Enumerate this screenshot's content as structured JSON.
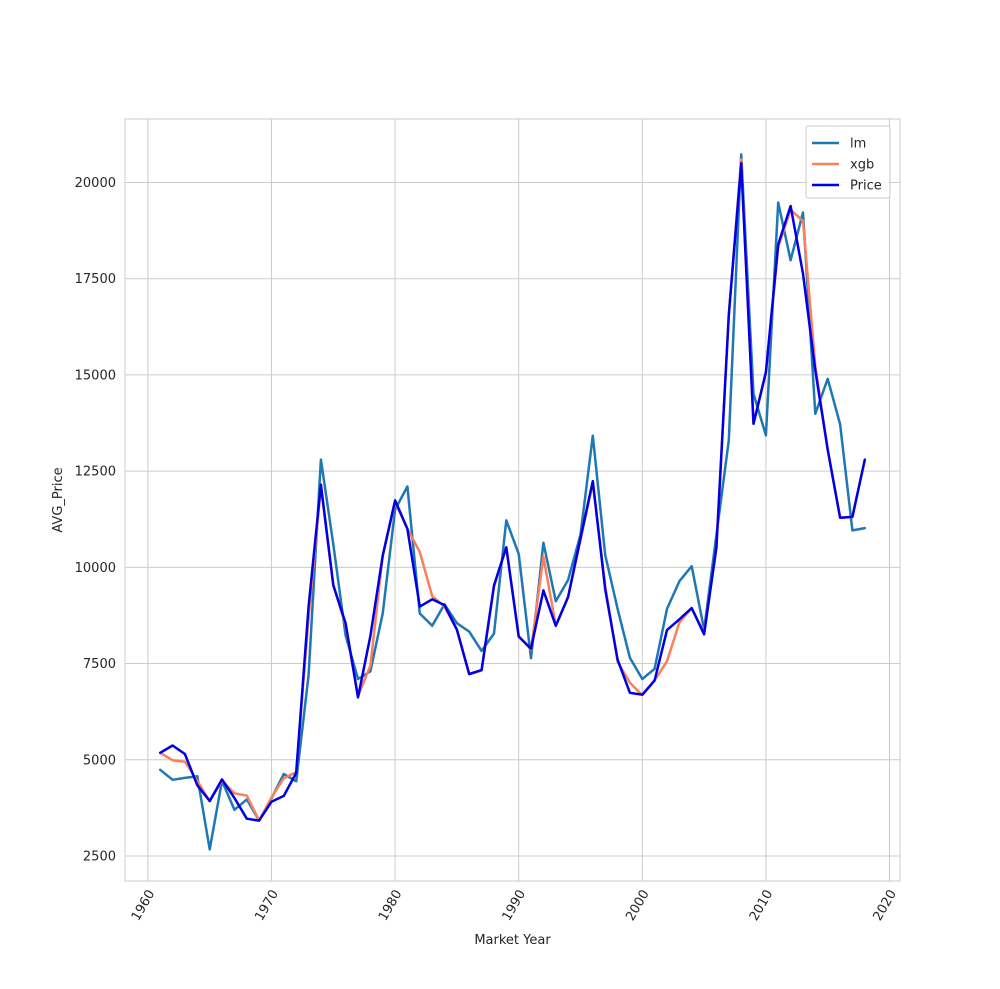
{
  "chart_data": {
    "type": "line",
    "title": "",
    "xlabel": "Market Year",
    "ylabel": "AVG_Price",
    "xlim": [
      1958.15,
      2020.85
    ],
    "ylim": [
      1850,
      21650
    ],
    "xticks": [
      1960,
      1970,
      1980,
      1990,
      2000,
      2010,
      2020
    ],
    "xtick_labels": [
      "1960",
      "1970",
      "1980",
      "1990",
      "2000",
      "2010",
      "2020"
    ],
    "xtick_rotation_deg": -60,
    "yticks": [
      2500,
      5000,
      7500,
      10000,
      12500,
      15000,
      17500,
      20000
    ],
    "ytick_labels": [
      "2500",
      "5000",
      "7500",
      "10000",
      "12500",
      "15000",
      "17500",
      "20000"
    ],
    "grid": true,
    "legend_position": "top-right",
    "x": [
      1961,
      1962,
      1963,
      1964,
      1965,
      1966,
      1967,
      1968,
      1969,
      1970,
      1971,
      1972,
      1973,
      1974,
      1975,
      1976,
      1977,
      1978,
      1979,
      1980,
      1981,
      1982,
      1983,
      1984,
      1985,
      1986,
      1987,
      1988,
      1989,
      1990,
      1991,
      1992,
      1993,
      1994,
      1995,
      1996,
      1997,
      1998,
      1999,
      2000,
      2001,
      2002,
      2003,
      2004,
      2005,
      2006,
      2007,
      2008,
      2009,
      2010,
      2011,
      2012,
      2013,
      2014,
      2015,
      2016,
      2017,
      2018
    ],
    "series": [
      {
        "name": "lm",
        "color": "#1f77b4",
        "values": [
          4740,
          4480,
          4530,
          4570,
          2670,
          4450,
          3700,
          3970,
          3420,
          4000,
          4630,
          4440,
          7200,
          12800,
          10600,
          8230,
          7100,
          7300,
          8800,
          11500,
          12100,
          8800,
          8480,
          9040,
          8550,
          8330,
          7830,
          8280,
          11220,
          10350,
          7640,
          10640,
          9120,
          9670,
          10850,
          13420,
          10320,
          8920,
          7650,
          7100,
          7360,
          8920,
          9640,
          10030,
          8380,
          10840,
          13300,
          20730,
          14510,
          13430,
          19480,
          17980,
          19220,
          13990,
          14900,
          13720,
          10960,
          11020
        ]
      },
      {
        "name": "xgb",
        "color": "#fa7f5a",
        "values": [
          5180,
          4990,
          4950,
          4450,
          3920,
          4460,
          4130,
          4070,
          3420,
          4020,
          4520,
          4680,
          8700,
          12100,
          9530,
          8500,
          6650,
          7450,
          10300,
          11700,
          11000,
          10400,
          9250,
          8980,
          8380,
          7220,
          7320,
          9500,
          10520,
          8220,
          7860,
          10280,
          8480,
          9230,
          10700,
          12200,
          9520,
          7550,
          7000,
          6680,
          7060,
          7560,
          8570,
          8940,
          8300,
          10510,
          16560,
          20600,
          13740,
          15060,
          18320,
          19290,
          19000,
          15230,
          13060,
          11290,
          11310,
          12790
        ]
      },
      {
        "name": "Price",
        "color": "#0000e6",
        "values": [
          5180,
          5370,
          5150,
          4340,
          3930,
          4490,
          4010,
          3470,
          3420,
          3910,
          4060,
          4660,
          8990,
          12150,
          9540,
          8550,
          6620,
          8220,
          10300,
          11740,
          11000,
          8980,
          9170,
          9020,
          8380,
          7230,
          7330,
          9530,
          10520,
          8200,
          7890,
          9400,
          8480,
          9230,
          10760,
          12240,
          9430,
          7600,
          6740,
          6690,
          7060,
          8370,
          8650,
          8940,
          8260,
          10520,
          16560,
          20500,
          13730,
          15070,
          18390,
          19390,
          17630,
          15120,
          13060,
          11290,
          11310,
          12800
        ]
      }
    ]
  }
}
